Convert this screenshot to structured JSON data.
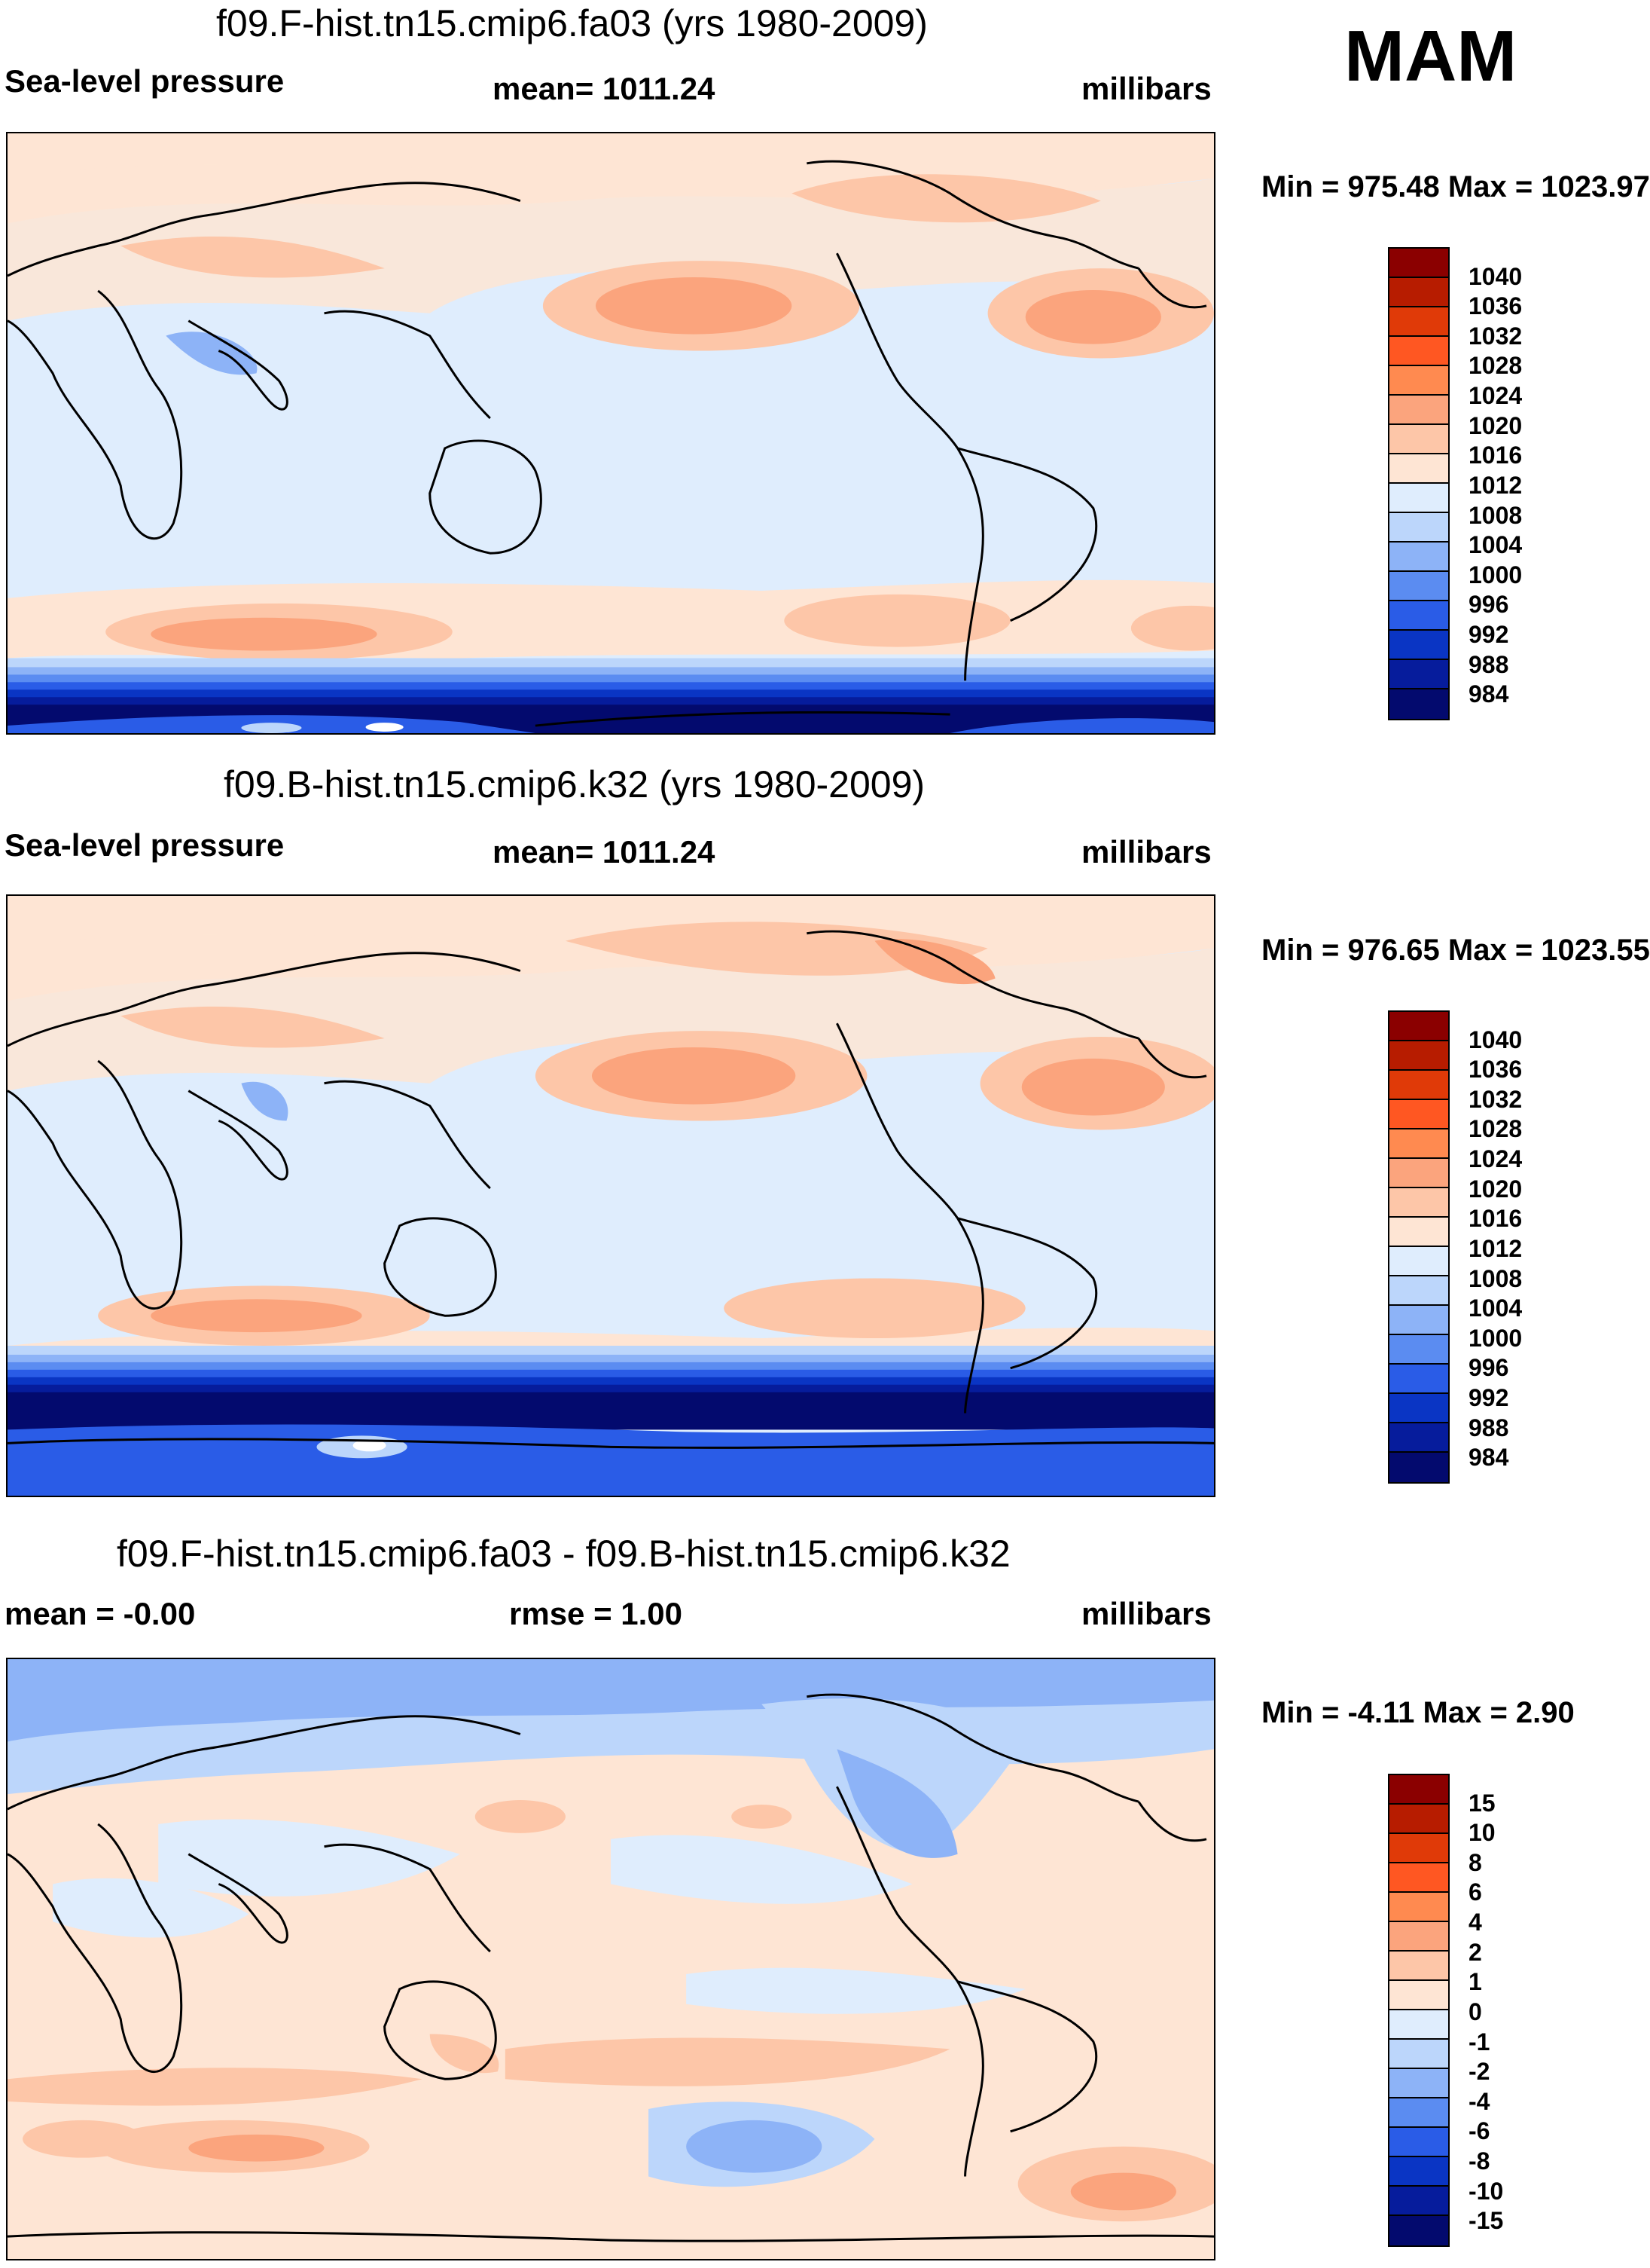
{
  "season": "MAM",
  "panels": [
    {
      "id": "top",
      "title": "f09.F-hist.tn15.cmip6.fa03 (yrs 1980-2009)",
      "left_label": "Sea-level pressure",
      "center_label": "mean= 1011.24",
      "right_label": "millibars",
      "minmax": "Min = 975.48 Max = 1023.97",
      "colorbar": {
        "levels": [
          "1040",
          "1036",
          "1032",
          "1028",
          "1024",
          "1020",
          "1016",
          "1012",
          "1008",
          "1004",
          "1000",
          "996",
          "992",
          "988",
          "984"
        ],
        "colors": [
          "#8b0000",
          "#b71c00",
          "#e03a08",
          "#ff5722",
          "#ff8a50",
          "#fba47d",
          "#fdc6a8",
          "#fee5d4",
          "#dfedfd",
          "#bcd6fb",
          "#8db3f7",
          "#5b8cf1",
          "#2a5ce7",
          "#0a35c4",
          "#061c9c",
          "#030a6e"
        ]
      }
    },
    {
      "id": "middle",
      "title": "f09.B-hist.tn15.cmip6.k32 (yrs 1980-2009)",
      "left_label": "Sea-level pressure",
      "center_label": "mean= 1011.24",
      "right_label": "millibars",
      "minmax": "Min = 976.65 Max = 1023.55",
      "colorbar": {
        "levels": [
          "1040",
          "1036",
          "1032",
          "1028",
          "1024",
          "1020",
          "1016",
          "1012",
          "1008",
          "1004",
          "1000",
          "996",
          "992",
          "988",
          "984"
        ],
        "colors": [
          "#8b0000",
          "#b71c00",
          "#e03a08",
          "#ff5722",
          "#ff8a50",
          "#fba47d",
          "#fdc6a8",
          "#fee5d4",
          "#dfedfd",
          "#bcd6fb",
          "#8db3f7",
          "#5b8cf1",
          "#2a5ce7",
          "#0a35c4",
          "#061c9c",
          "#030a6e"
        ]
      }
    },
    {
      "id": "bottom",
      "title": "f09.F-hist.tn15.cmip6.fa03 - f09.B-hist.tn15.cmip6.k32",
      "left_label": "mean =  -0.00",
      "center_label": "rmse =   1.00",
      "right_label": "millibars",
      "minmax": "Min =  -4.11 Max =   2.90",
      "colorbar": {
        "levels": [
          "15",
          "10",
          "8",
          "6",
          "4",
          "2",
          "1",
          "0",
          "-1",
          "-2",
          "-4",
          "-6",
          "-8",
          "-10",
          "-15"
        ],
        "colors": [
          "#8b0000",
          "#b71c00",
          "#e03a08",
          "#ff5722",
          "#ff8a50",
          "#fba47d",
          "#fdc6a8",
          "#fee5d4",
          "#dfedfd",
          "#bcd6fb",
          "#8db3f7",
          "#5b8cf1",
          "#2a5ce7",
          "#0a35c4",
          "#061c9c",
          "#030a6e"
        ]
      }
    }
  ]
}
